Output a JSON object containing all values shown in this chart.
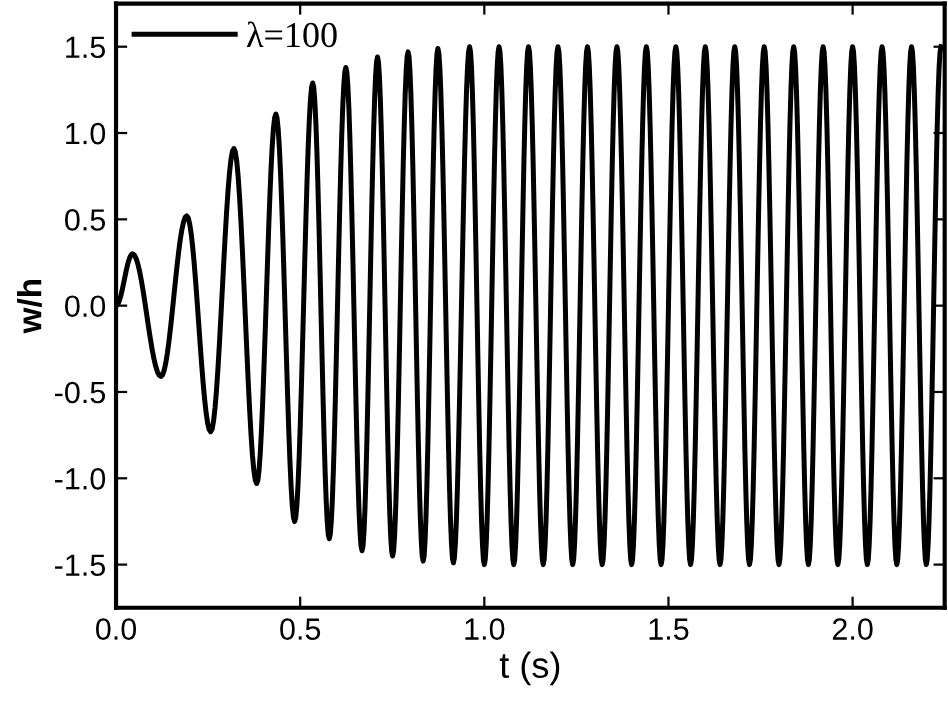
{
  "chart_data": {
    "type": "line",
    "xlabel": "t (s)",
    "ylabel": "w/h",
    "xlim": [
      0,
      2.25
    ],
    "ylim": [
      -1.75,
      1.75
    ],
    "xticks": [
      {
        "value": 0,
        "label": "0.0"
      },
      0.5,
      {
        "value": 1,
        "label": "1.0"
      },
      1.5,
      {
        "value": 2,
        "label": "2.0"
      }
    ],
    "yticks": [
      {
        "value": -1.5,
        "label": "-1.5"
      },
      {
        "value": -1,
        "label": "-1.0"
      },
      {
        "value": -0.5,
        "label": "-0.5"
      },
      {
        "value": 0,
        "label": "0.0"
      },
      0.5,
      {
        "value": 1,
        "label": "1.0"
      },
      1.5
    ],
    "grid": false,
    "legend": "top left",
    "marker": "none",
    "line_style": "solid",
    "series": [
      {
        "name": "λ=100",
        "color": "#000000",
        "x": [
          0,
          0.045,
          0.122,
          0.192,
          0.257,
          0.32,
          0.382,
          0.434,
          0.485,
          0.534,
          0.579,
          0.624,
          0.668,
          0.71,
          0.751,
          0.793,
          0.834,
          0.874,
          0.916,
          0.96,
          1.0,
          1.04,
          1.08,
          1.12,
          1.16,
          1.2,
          1.24,
          1.28,
          1.32,
          1.36,
          1.4,
          1.44,
          1.48,
          1.52,
          1.56,
          1.6,
          1.64,
          1.68,
          1.72,
          1.76,
          1.8,
          1.84,
          1.88,
          1.92,
          1.96,
          2.0,
          2.04,
          2.08,
          2.12,
          2.16,
          2.2,
          2.24
        ],
        "values": [
          0,
          0.3,
          -0.41,
          0.52,
          -0.73,
          0.91,
          -1.03,
          1.11,
          -1.25,
          1.29,
          -1.35,
          1.38,
          -1.42,
          1.44,
          -1.45,
          1.47,
          -1.48,
          1.49,
          -1.49,
          1.5,
          -1.5,
          1.5,
          -1.5,
          1.5,
          -1.5,
          1.5,
          -1.5,
          1.5,
          -1.5,
          1.5,
          -1.5,
          1.5,
          -1.5,
          1.5,
          -1.5,
          1.5,
          -1.5,
          1.5,
          -1.5,
          1.5,
          -1.5,
          1.5,
          -1.5,
          1.5,
          -1.5,
          1.5,
          -1.5,
          1.5,
          -1.5,
          1.5,
          -1.5,
          1.5
        ]
      }
    ]
  }
}
